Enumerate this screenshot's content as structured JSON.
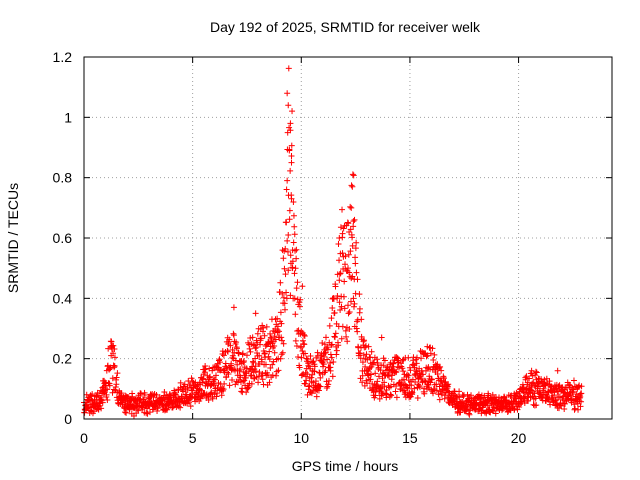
{
  "chart_data": {
    "type": "scatter",
    "title": "Day 192 of 2025, SRMTID for receiver welk",
    "xlabel": "GPS time / hours",
    "ylabel": "SRMTID / TECUs",
    "xlim": [
      0,
      24.3
    ],
    "ylim": [
      0,
      1.2
    ],
    "x_ticks": [
      0,
      5,
      10,
      15,
      20
    ],
    "x_tick_labels": [
      "0",
      "5",
      "10",
      "15",
      "20"
    ],
    "y_ticks": [
      0,
      0.2,
      0.4,
      0.6,
      0.8,
      1,
      1.2
    ],
    "y_tick_labels": [
      "0",
      "0.2",
      "0.4",
      "0.6",
      "0.8",
      "1",
      "1.2"
    ],
    "grid": true,
    "marker": "+",
    "series": [
      {
        "name": "SRMTID",
        "color": "#ff0000",
        "baseline_profile": [
          [
            0,
            0.045
          ],
          [
            0.5,
            0.05
          ],
          [
            0.8,
            0.07
          ],
          [
            1.0,
            0.1
          ],
          [
            1.2,
            0.19
          ],
          [
            1.4,
            0.16
          ],
          [
            1.6,
            0.07
          ],
          [
            2.0,
            0.05
          ],
          [
            3.0,
            0.055
          ],
          [
            4.0,
            0.06
          ],
          [
            4.6,
            0.08
          ],
          [
            5.0,
            0.09
          ],
          [
            5.5,
            0.12
          ],
          [
            6.0,
            0.12
          ],
          [
            6.5,
            0.16
          ],
          [
            6.8,
            0.22
          ],
          [
            7.2,
            0.14
          ],
          [
            7.6,
            0.17
          ],
          [
            8.0,
            0.22
          ],
          [
            8.5,
            0.2
          ],
          [
            9.0,
            0.3
          ],
          [
            9.3,
            0.5
          ],
          [
            9.45,
            0.9
          ],
          [
            9.6,
            0.7
          ],
          [
            9.8,
            0.35
          ],
          [
            10.0,
            0.25
          ],
          [
            10.3,
            0.14
          ],
          [
            10.7,
            0.15
          ],
          [
            11.0,
            0.17
          ],
          [
            11.3,
            0.2
          ],
          [
            11.6,
            0.35
          ],
          [
            11.9,
            0.5
          ],
          [
            12.2,
            0.45
          ],
          [
            12.4,
            0.65
          ],
          [
            12.6,
            0.35
          ],
          [
            12.8,
            0.2
          ],
          [
            13.3,
            0.14
          ],
          [
            14.0,
            0.13
          ],
          [
            14.5,
            0.15
          ],
          [
            15.0,
            0.13
          ],
          [
            15.5,
            0.15
          ],
          [
            16.0,
            0.17
          ],
          [
            16.5,
            0.12
          ],
          [
            16.8,
            0.07
          ],
          [
            17.5,
            0.05
          ],
          [
            18.5,
            0.05
          ],
          [
            19.5,
            0.05
          ],
          [
            20.0,
            0.06
          ],
          [
            20.5,
            0.11
          ],
          [
            21.0,
            0.1
          ],
          [
            21.5,
            0.08
          ],
          [
            22.0,
            0.08
          ],
          [
            22.5,
            0.08
          ],
          [
            22.9,
            0.075
          ]
        ],
        "key_points": [
          [
            9.35,
            1.08
          ],
          [
            9.4,
            1.04
          ],
          [
            9.5,
            0.98
          ],
          [
            9.45,
            0.89
          ],
          [
            9.55,
            0.85
          ],
          [
            9.35,
            0.79
          ],
          [
            9.55,
            0.73
          ],
          [
            9.4,
            0.61
          ],
          [
            9.6,
            0.5
          ],
          [
            9.5,
            0.41
          ],
          [
            9.7,
            0.4
          ],
          [
            12.35,
            0.77
          ],
          [
            12.3,
            0.7
          ],
          [
            12.45,
            0.66
          ],
          [
            12.2,
            0.62
          ],
          [
            11.75,
            0.6
          ],
          [
            11.9,
            0.55
          ],
          [
            12.15,
            0.5
          ],
          [
            12.4,
            0.4
          ],
          [
            10.05,
            0.44
          ],
          [
            6.9,
            0.37
          ],
          [
            7.9,
            0.35
          ],
          [
            1.25,
            0.24
          ],
          [
            13.7,
            0.27
          ],
          [
            15.8,
            0.24
          ],
          [
            20.6,
            0.16
          ],
          [
            21.8,
            0.16
          ],
          [
            22.7,
            0.1
          ],
          [
            0.05,
            0.03
          ],
          [
            2.3,
            0.01
          ],
          [
            17.2,
            0.02
          ],
          [
            19.8,
            0.03
          ]
        ]
      }
    ]
  }
}
